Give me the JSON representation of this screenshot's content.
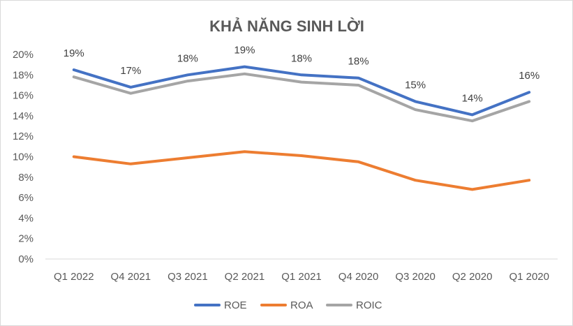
{
  "chart_data": {
    "type": "line",
    "title": "KHẢ NĂNG SINH LỜI",
    "categories": [
      "Q1 2022",
      "Q4 2021",
      "Q3 2021",
      "Q2 2021",
      "Q1 2021",
      "Q4 2020",
      "Q3 2020",
      "Q2 2020",
      "Q1 2020"
    ],
    "ylim": [
      0,
      20
    ],
    "y_ticks": [
      "0%",
      "2%",
      "4%",
      "6%",
      "8%",
      "10%",
      "12%",
      "14%",
      "16%",
      "18%",
      "20%"
    ],
    "grid": false,
    "legend_position": "bottom",
    "series": [
      {
        "name": "ROE",
        "color": "#4472c4",
        "values": [
          18.5,
          16.8,
          18.0,
          18.8,
          18.0,
          17.7,
          15.4,
          14.1,
          16.3
        ],
        "data_labels": [
          "19%",
          "17%",
          "18%",
          "19%",
          "18%",
          "18%",
          "15%",
          "14%",
          "16%"
        ]
      },
      {
        "name": "ROA",
        "color": "#ed7d31",
        "values": [
          10.0,
          9.3,
          9.9,
          10.5,
          10.1,
          9.5,
          7.7,
          6.8,
          7.7
        ]
      },
      {
        "name": "ROIC",
        "color": "#a5a5a5",
        "values": [
          17.8,
          16.2,
          17.4,
          18.1,
          17.3,
          17.0,
          14.6,
          13.5,
          15.4
        ]
      }
    ]
  }
}
